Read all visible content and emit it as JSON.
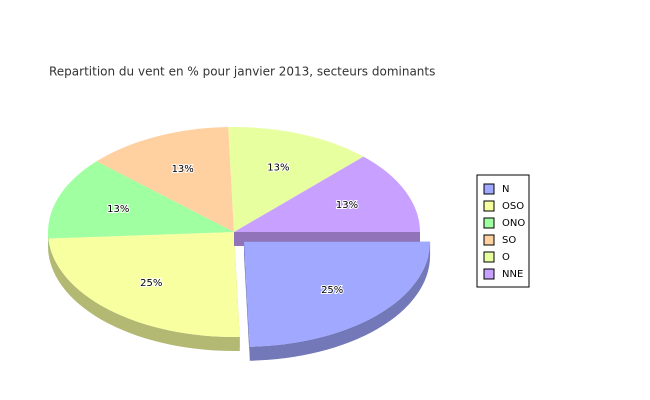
{
  "chart_data": {
    "type": "pie3d",
    "title": "Repartition du vent en % pour janvier 2013, secteurs dominants",
    "categories": [
      "N",
      "OSO",
      "ONO",
      "SO",
      "O",
      "NNE"
    ],
    "values": [
      25,
      25,
      13,
      13,
      13,
      13
    ],
    "value_labels": [
      "25%",
      "25%",
      "13%",
      "13%",
      "13%",
      "13%"
    ],
    "colors": [
      "#a0a8ff",
      "#f8ffa0",
      "#a0ffa0",
      "#ffd0a0",
      "#e8ffa0",
      "#c8a0ff"
    ],
    "explode": [
      true,
      false,
      false,
      false,
      false,
      false
    ],
    "legend": "right"
  }
}
